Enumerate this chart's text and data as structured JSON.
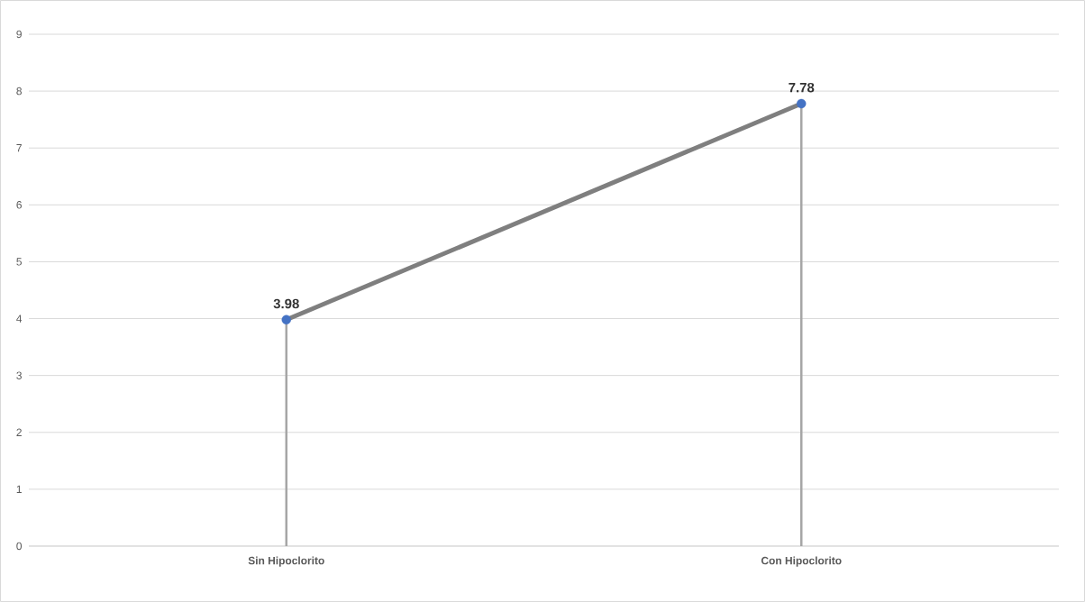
{
  "chart_data": {
    "type": "line",
    "categories": [
      "Sin Hipoclorito",
      "Con Hipoclorito"
    ],
    "series": [
      {
        "type": "lollipop",
        "color": "#a6a6a6",
        "colors": [
          "#4472c4",
          "#4472c4"
        ],
        "values": [
          3.98,
          7.78
        ],
        "marker": "circle"
      },
      {
        "color": "#7f7f7f",
        "values": [
          3.98,
          7.78
        ],
        "value_labels": [
          "3.98",
          "7.78"
        ],
        "marker": "none"
      }
    ],
    "ylim": [
      0,
      9
    ],
    "yticks": [
      0,
      1,
      2,
      3,
      4,
      5,
      6,
      7,
      8,
      9
    ],
    "grid": "y"
  }
}
